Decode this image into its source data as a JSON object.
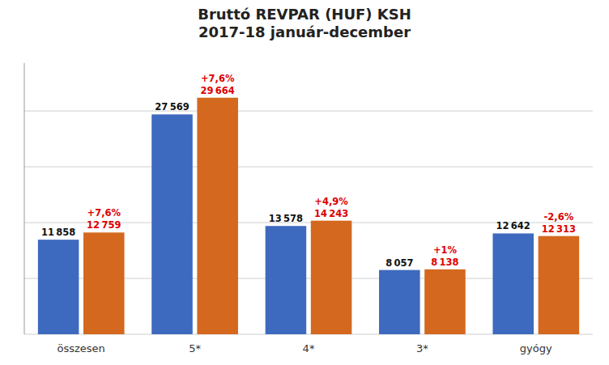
{
  "chart_data": {
    "type": "bar",
    "title": "Bruttó REVPAR (HUF) KSH\n2017-18 január-december",
    "categories": [
      "összesen",
      "5*",
      "4*",
      "3*",
      "gyógy"
    ],
    "series": [
      {
        "color": "#3d6abf",
        "values": [
          11858,
          27569,
          13578,
          8057,
          12642
        ],
        "value_labels": [
          "11 858",
          "27 569",
          "13 578",
          "8 057",
          "12 642"
        ]
      },
      {
        "color": "#d4681e",
        "values": [
          12759,
          29664,
          14243,
          8138,
          12313
        ],
        "value_labels": [
          "12 759",
          "29 664",
          "14 243",
          "8 138",
          "12 313"
        ],
        "annotations": [
          "+7,6%",
          "+7,6%",
          "+4,9%",
          "+1%",
          "-2,6%"
        ]
      }
    ],
    "ylim": [
      0,
      34000
    ],
    "yticks": [
      0,
      7000,
      14000,
      21000,
      28000
    ],
    "grid": true,
    "tick_labels": "x",
    "data_labels": true
  }
}
